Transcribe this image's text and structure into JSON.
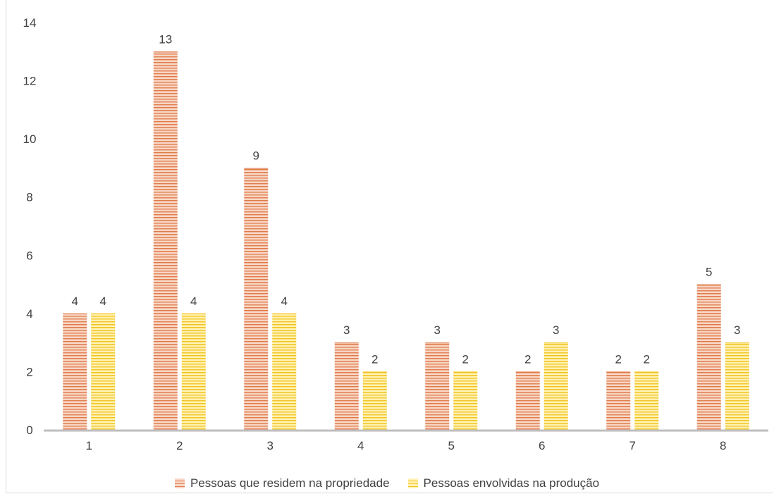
{
  "chart_data": {
    "type": "bar",
    "title": "",
    "xlabel": "",
    "ylabel": "",
    "categories": [
      "1",
      "2",
      "3",
      "4",
      "5",
      "6",
      "7",
      "8"
    ],
    "series": [
      {
        "name": "Pessoas que residem na propriedade",
        "values": [
          4,
          13,
          9,
          3,
          3,
          2,
          2,
          5
        ],
        "color": "#e07a48"
      },
      {
        "name": "Pessoas envolvidas na produção",
        "values": [
          4,
          4,
          4,
          2,
          2,
          3,
          2,
          3
        ],
        "color": "#f2c21e"
      }
    ],
    "ylim": [
      0,
      14
    ],
    "yticks": [
      0,
      2,
      4,
      6,
      8,
      10,
      12,
      14
    ],
    "grid": false,
    "legend": "bottom",
    "data_labels": true
  }
}
